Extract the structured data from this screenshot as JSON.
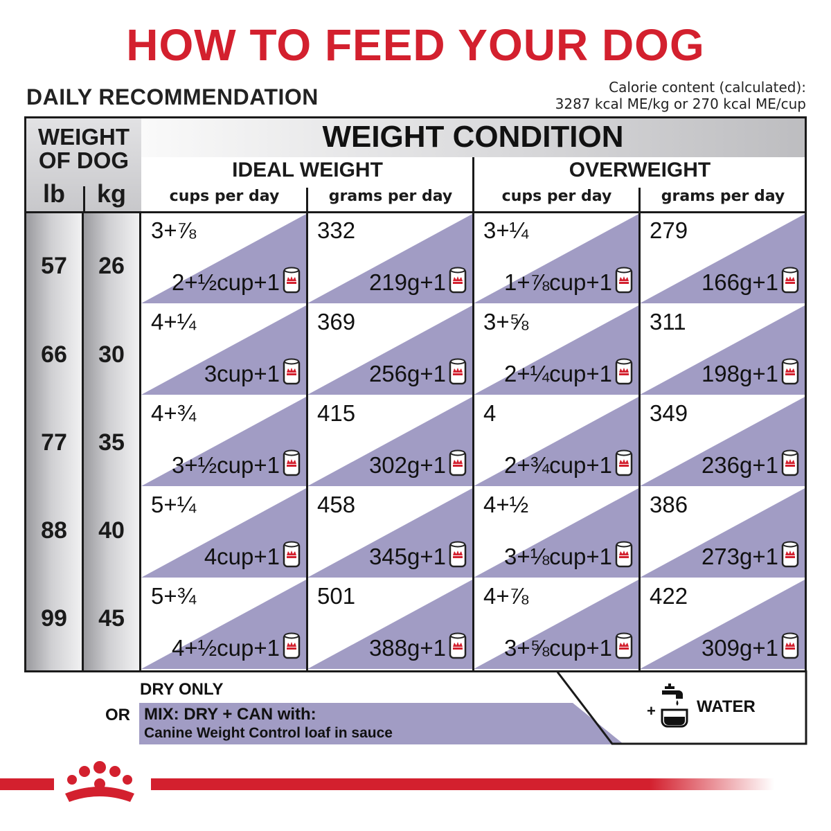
{
  "title": "HOW TO FEED YOUR DOG",
  "daily_label": "DAILY RECOMMENDATION",
  "calorie": {
    "line1": "Calorie content (calculated):",
    "line2": "3287 kcal ME/kg or 270 kcal ME/cup"
  },
  "table": {
    "weight_of_dog": {
      "line1": "WEIGHT",
      "line2": "OF DOG",
      "lb": "lb",
      "kg": "kg"
    },
    "weight_condition": "WEIGHT CONDITION",
    "groups": [
      {
        "label": "IDEAL WEIGHT",
        "sub": [
          "cups per day",
          "grams per day"
        ]
      },
      {
        "label": "OVERWEIGHT",
        "sub": [
          "cups per day",
          "grams per day"
        ]
      }
    ],
    "rows": [
      {
        "lb": "57",
        "kg": "26",
        "cells": [
          {
            "top": "3+⅞",
            "bottom": "2+½cup+1"
          },
          {
            "top": "332",
            "bottom": "219g+1"
          },
          {
            "top": "3+¼",
            "bottom": "1+⅞cup+1"
          },
          {
            "top": "279",
            "bottom": "166g+1"
          }
        ]
      },
      {
        "lb": "66",
        "kg": "30",
        "cells": [
          {
            "top": "4+¼",
            "bottom": "3cup+1"
          },
          {
            "top": "369",
            "bottom": "256g+1"
          },
          {
            "top": "3+⅝",
            "bottom": "2+¼cup+1"
          },
          {
            "top": "311",
            "bottom": "198g+1"
          }
        ]
      },
      {
        "lb": "77",
        "kg": "35",
        "cells": [
          {
            "top": "4+¾",
            "bottom": "3+½cup+1"
          },
          {
            "top": "415",
            "bottom": "302g+1"
          },
          {
            "top": "4",
            "bottom": "2+¾cup+1"
          },
          {
            "top": "349",
            "bottom": "236g+1"
          }
        ]
      },
      {
        "lb": "88",
        "kg": "40",
        "cells": [
          {
            "top": "5+¼",
            "bottom": "4cup+1"
          },
          {
            "top": "458",
            "bottom": "345g+1"
          },
          {
            "top": "4+½",
            "bottom": "3+⅛cup+1"
          },
          {
            "top": "386",
            "bottom": "273g+1"
          }
        ]
      },
      {
        "lb": "99",
        "kg": "45",
        "cells": [
          {
            "top": "5+¾",
            "bottom": "4+½cup+1"
          },
          {
            "top": "501",
            "bottom": "388g+1"
          },
          {
            "top": "4+⅞",
            "bottom": "3+⅝cup+1"
          },
          {
            "top": "422",
            "bottom": "309g+1"
          }
        ]
      }
    ]
  },
  "footer": {
    "dry_only": "DRY ONLY",
    "or": "OR",
    "mix_line1": "MIX: DRY + CAN with:",
    "mix_line2": "Canine Weight Control loaf in sauce",
    "plus": "+",
    "water": "WATER"
  },
  "icons": {
    "can": "can-icon",
    "water": "water-tap-icon",
    "brand": "royal-canin-crown-logo"
  },
  "colors": {
    "title_red": "#d3202e",
    "mix_purple": "#a19cc4",
    "cell_purple": "#a19cc4",
    "brand_red": "#d3202e"
  }
}
